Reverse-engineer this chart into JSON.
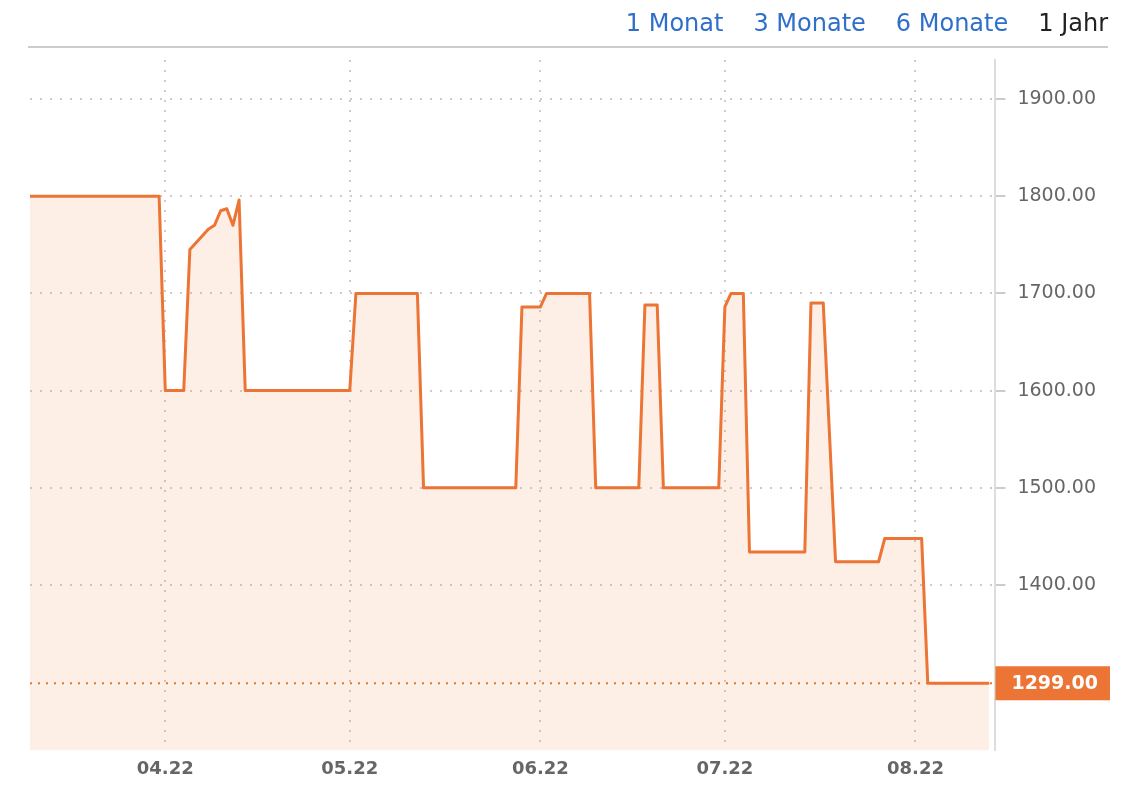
{
  "chart_data": {
    "type": "area",
    "annotations": [
      "1 Monat",
      "3 Monate",
      "6 Monate",
      "1 Jahr"
    ],
    "x": [
      "2022-03-10",
      "2022-03-31",
      "2022-04-01",
      "2022-04-04",
      "2022-04-05",
      "2022-04-08",
      "2022-04-09",
      "2022-04-10",
      "2022-04-11",
      "2022-04-12",
      "2022-04-13",
      "2022-04-14",
      "2022-05-01",
      "2022-05-02",
      "2022-05-12",
      "2022-05-13",
      "2022-05-28",
      "2022-05-29",
      "2022-06-01",
      "2022-06-02",
      "2022-06-09",
      "2022-06-10",
      "2022-06-17",
      "2022-06-18",
      "2022-06-20",
      "2022-06-21",
      "2022-06-30",
      "2022-07-01",
      "2022-07-02",
      "2022-07-04",
      "2022-07-05",
      "2022-07-14",
      "2022-07-15",
      "2022-07-17",
      "2022-07-19",
      "2022-07-26",
      "2022-07-27",
      "2022-08-02",
      "2022-08-03",
      "2022-08-13"
    ],
    "series": [
      {
        "color": "#ec7434",
        "values": [
          1800,
          1800,
          1600,
          1600,
          1745,
          1766,
          1770,
          1785,
          1787,
          1770,
          1796,
          1600,
          1600,
          1700,
          1700,
          1500,
          1500,
          1686,
          1686,
          1700,
          1700,
          1500,
          1500,
          1688,
          1688,
          1500,
          1500,
          1686,
          1700,
          1700,
          1434,
          1434,
          1690,
          1690,
          1424,
          1424,
          1448,
          1448,
          1299,
          1299
        ]
      }
    ],
    "xlim": [
      "2022-03-10",
      "2022-08-14"
    ],
    "xticks": [
      {
        "value": "2022-04-01",
        "label": "04.22"
      },
      {
        "value": "2022-05-01",
        "label": "05.22"
      },
      {
        "value": "2022-06-01",
        "label": "06.22"
      },
      {
        "value": "2022-07-01",
        "label": "07.22"
      },
      {
        "value": "2022-08-01",
        "label": "08.22"
      }
    ],
    "ylim": [
      1230,
      1940
    ],
    "yticks": [
      {
        "value": 1400,
        "label": "1400.00"
      },
      {
        "value": 1500,
        "label": "1500.00"
      },
      {
        "value": 1600,
        "label": "1600.00"
      },
      {
        "value": 1700,
        "label": "1700.00"
      },
      {
        "value": 1800,
        "label": "1800.00"
      },
      {
        "value": 1900,
        "label": "1900.00"
      }
    ],
    "ref_lines": [
      {
        "axis": "y",
        "value": 1299,
        "label": "1299.00",
        "color": "#ec7434",
        "line_style": "dotted"
      }
    ],
    "grid": true,
    "legend": false,
    "marker": "none",
    "line_style": "solid"
  }
}
